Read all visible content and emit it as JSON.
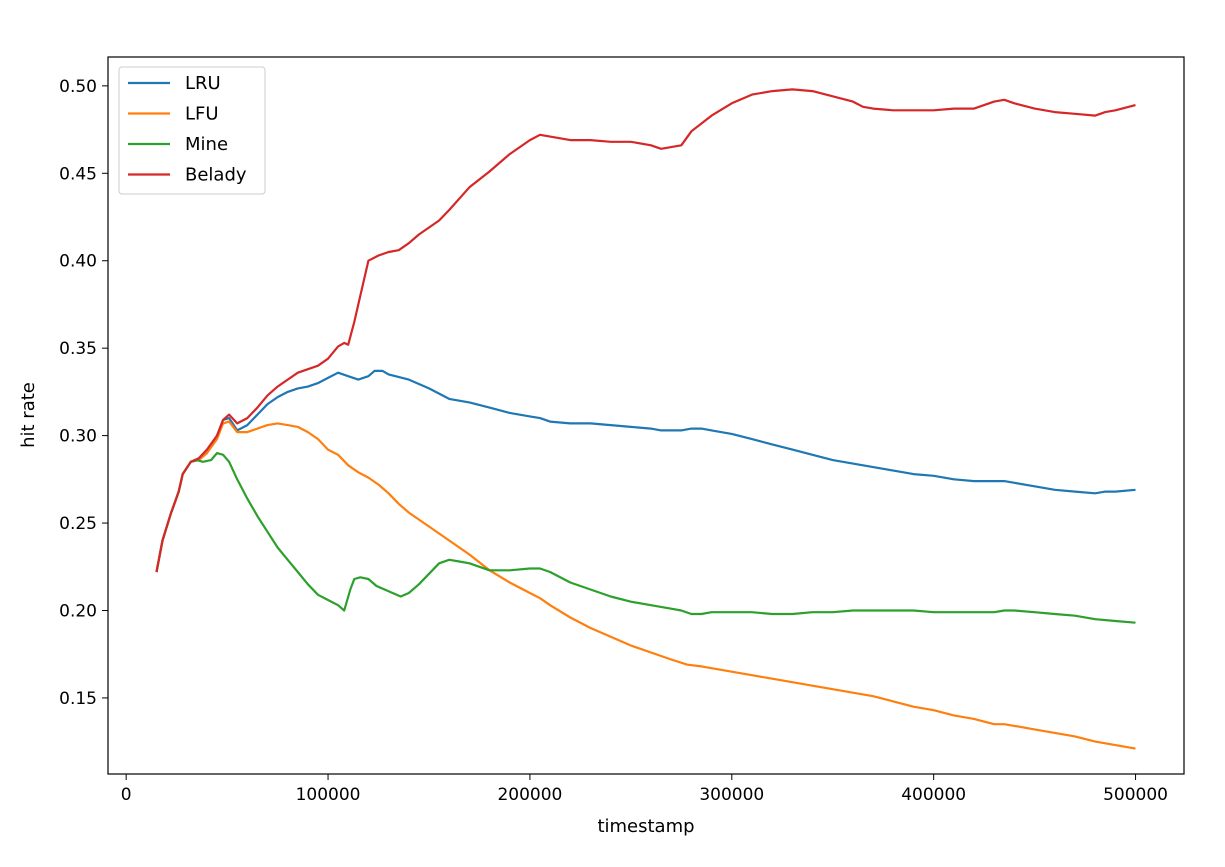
{
  "chart_data": {
    "type": "line",
    "title": "",
    "xlabel": "timestamp",
    "ylabel": "hit rate",
    "xlim": [
      -9000,
      524000
    ],
    "ylim": [
      0.1065,
      0.5165
    ],
    "x_ticks": [
      0,
      100000,
      200000,
      300000,
      400000,
      500000
    ],
    "x_tick_labels": [
      "0",
      "100000",
      "200000",
      "300000",
      "400000",
      "500000"
    ],
    "y_ticks": [
      0.15,
      0.2,
      0.25,
      0.3,
      0.35,
      0.4,
      0.45,
      0.5
    ],
    "y_tick_labels": [
      "0.15",
      "0.20",
      "0.25",
      "0.30",
      "0.35",
      "0.40",
      "0.45",
      "0.50"
    ],
    "grid": false,
    "legend_position": "top-left",
    "series": [
      {
        "name": "LRU",
        "color": "#1f77b4",
        "points": [
          [
            15000,
            0.222
          ],
          [
            18000,
            0.24
          ],
          [
            22000,
            0.255
          ],
          [
            26000,
            0.268
          ],
          [
            28000,
            0.278
          ],
          [
            32000,
            0.285
          ],
          [
            36000,
            0.286
          ],
          [
            40000,
            0.29
          ],
          [
            45000,
            0.3
          ],
          [
            48000,
            0.309
          ],
          [
            51000,
            0.31
          ],
          [
            55000,
            0.303
          ],
          [
            60000,
            0.306
          ],
          [
            65000,
            0.312
          ],
          [
            70000,
            0.318
          ],
          [
            75000,
            0.322
          ],
          [
            80000,
            0.325
          ],
          [
            85000,
            0.327
          ],
          [
            90000,
            0.328
          ],
          [
            95000,
            0.33
          ],
          [
            100000,
            0.333
          ],
          [
            105000,
            0.336
          ],
          [
            110000,
            0.334
          ],
          [
            115000,
            0.332
          ],
          [
            120000,
            0.334
          ],
          [
            123000,
            0.337
          ],
          [
            127000,
            0.337
          ],
          [
            130000,
            0.335
          ],
          [
            140000,
            0.332
          ],
          [
            150000,
            0.327
          ],
          [
            160000,
            0.321
          ],
          [
            170000,
            0.319
          ],
          [
            180000,
            0.316
          ],
          [
            190000,
            0.313
          ],
          [
            200000,
            0.311
          ],
          [
            205000,
            0.31
          ],
          [
            210000,
            0.308
          ],
          [
            220000,
            0.307
          ],
          [
            230000,
            0.307
          ],
          [
            240000,
            0.306
          ],
          [
            250000,
            0.305
          ],
          [
            260000,
            0.304
          ],
          [
            265000,
            0.303
          ],
          [
            270000,
            0.303
          ],
          [
            275000,
            0.303
          ],
          [
            280000,
            0.304
          ],
          [
            285000,
            0.304
          ],
          [
            290000,
            0.303
          ],
          [
            300000,
            0.301
          ],
          [
            310000,
            0.298
          ],
          [
            320000,
            0.295
          ],
          [
            330000,
            0.292
          ],
          [
            340000,
            0.289
          ],
          [
            350000,
            0.286
          ],
          [
            360000,
            0.284
          ],
          [
            370000,
            0.282
          ],
          [
            380000,
            0.28
          ],
          [
            390000,
            0.278
          ],
          [
            400000,
            0.277
          ],
          [
            410000,
            0.275
          ],
          [
            420000,
            0.274
          ],
          [
            430000,
            0.274
          ],
          [
            435000,
            0.274
          ],
          [
            440000,
            0.273
          ],
          [
            450000,
            0.271
          ],
          [
            460000,
            0.269
          ],
          [
            470000,
            0.268
          ],
          [
            480000,
            0.267
          ],
          [
            485000,
            0.268
          ],
          [
            490000,
            0.268
          ],
          [
            500000,
            0.269
          ]
        ]
      },
      {
        "name": "LFU",
        "color": "#ff7f0e",
        "points": [
          [
            15000,
            0.222
          ],
          [
            18000,
            0.24
          ],
          [
            22000,
            0.255
          ],
          [
            26000,
            0.268
          ],
          [
            28000,
            0.278
          ],
          [
            32000,
            0.285
          ],
          [
            36000,
            0.286
          ],
          [
            40000,
            0.29
          ],
          [
            45000,
            0.298
          ],
          [
            48000,
            0.307
          ],
          [
            51000,
            0.308
          ],
          [
            55000,
            0.302
          ],
          [
            60000,
            0.302
          ],
          [
            65000,
            0.304
          ],
          [
            70000,
            0.306
          ],
          [
            75000,
            0.307
          ],
          [
            80000,
            0.306
          ],
          [
            85000,
            0.305
          ],
          [
            90000,
            0.302
          ],
          [
            95000,
            0.298
          ],
          [
            100000,
            0.292
          ],
          [
            105000,
            0.289
          ],
          [
            110000,
            0.283
          ],
          [
            115000,
            0.279
          ],
          [
            120000,
            0.276
          ],
          [
            125000,
            0.272
          ],
          [
            130000,
            0.267
          ],
          [
            135000,
            0.261
          ],
          [
            140000,
            0.256
          ],
          [
            150000,
            0.248
          ],
          [
            160000,
            0.24
          ],
          [
            170000,
            0.232
          ],
          [
            180000,
            0.223
          ],
          [
            190000,
            0.216
          ],
          [
            200000,
            0.21
          ],
          [
            205000,
            0.207
          ],
          [
            210000,
            0.203
          ],
          [
            220000,
            0.196
          ],
          [
            230000,
            0.19
          ],
          [
            240000,
            0.185
          ],
          [
            250000,
            0.18
          ],
          [
            260000,
            0.176
          ],
          [
            270000,
            0.172
          ],
          [
            278000,
            0.169
          ],
          [
            285000,
            0.168
          ],
          [
            290000,
            0.167
          ],
          [
            300000,
            0.165
          ],
          [
            310000,
            0.163
          ],
          [
            320000,
            0.161
          ],
          [
            330000,
            0.159
          ],
          [
            340000,
            0.157
          ],
          [
            350000,
            0.155
          ],
          [
            360000,
            0.153
          ],
          [
            370000,
            0.151
          ],
          [
            380000,
            0.148
          ],
          [
            390000,
            0.145
          ],
          [
            400000,
            0.143
          ],
          [
            410000,
            0.14
          ],
          [
            420000,
            0.138
          ],
          [
            430000,
            0.135
          ],
          [
            435000,
            0.135
          ],
          [
            440000,
            0.134
          ],
          [
            450000,
            0.132
          ],
          [
            460000,
            0.13
          ],
          [
            470000,
            0.128
          ],
          [
            480000,
            0.125
          ],
          [
            490000,
            0.123
          ],
          [
            500000,
            0.121
          ]
        ]
      },
      {
        "name": "Mine",
        "color": "#2ca02c",
        "points": [
          [
            15000,
            0.222
          ],
          [
            18000,
            0.24
          ],
          [
            22000,
            0.255
          ],
          [
            26000,
            0.268
          ],
          [
            28000,
            0.278
          ],
          [
            32000,
            0.285
          ],
          [
            35000,
            0.286
          ],
          [
            38000,
            0.285
          ],
          [
            42000,
            0.286
          ],
          [
            45000,
            0.29
          ],
          [
            48000,
            0.289
          ],
          [
            51000,
            0.285
          ],
          [
            55000,
            0.275
          ],
          [
            60000,
            0.264
          ],
          [
            65000,
            0.254
          ],
          [
            70000,
            0.245
          ],
          [
            75000,
            0.236
          ],
          [
            80000,
            0.229
          ],
          [
            85000,
            0.222
          ],
          [
            90000,
            0.215
          ],
          [
            95000,
            0.209
          ],
          [
            100000,
            0.206
          ],
          [
            105000,
            0.203
          ],
          [
            108000,
            0.2
          ],
          [
            111000,
            0.212
          ],
          [
            113000,
            0.218
          ],
          [
            116000,
            0.219
          ],
          [
            120000,
            0.218
          ],
          [
            124000,
            0.214
          ],
          [
            128000,
            0.212
          ],
          [
            132000,
            0.21
          ],
          [
            136000,
            0.208
          ],
          [
            140000,
            0.21
          ],
          [
            145000,
            0.215
          ],
          [
            150000,
            0.221
          ],
          [
            155000,
            0.227
          ],
          [
            160000,
            0.229
          ],
          [
            165000,
            0.228
          ],
          [
            170000,
            0.227
          ],
          [
            175000,
            0.225
          ],
          [
            180000,
            0.223
          ],
          [
            190000,
            0.223
          ],
          [
            200000,
            0.224
          ],
          [
            205000,
            0.224
          ],
          [
            210000,
            0.222
          ],
          [
            220000,
            0.216
          ],
          [
            230000,
            0.212
          ],
          [
            240000,
            0.208
          ],
          [
            250000,
            0.205
          ],
          [
            260000,
            0.203
          ],
          [
            270000,
            0.201
          ],
          [
            275000,
            0.2
          ],
          [
            280000,
            0.198
          ],
          [
            285000,
            0.198
          ],
          [
            290000,
            0.199
          ],
          [
            300000,
            0.199
          ],
          [
            310000,
            0.199
          ],
          [
            320000,
            0.198
          ],
          [
            325000,
            0.198
          ],
          [
            330000,
            0.198
          ],
          [
            340000,
            0.199
          ],
          [
            350000,
            0.199
          ],
          [
            360000,
            0.2
          ],
          [
            370000,
            0.2
          ],
          [
            380000,
            0.2
          ],
          [
            390000,
            0.2
          ],
          [
            400000,
            0.199
          ],
          [
            410000,
            0.199
          ],
          [
            420000,
            0.199
          ],
          [
            430000,
            0.199
          ],
          [
            435000,
            0.2
          ],
          [
            440000,
            0.2
          ],
          [
            450000,
            0.199
          ],
          [
            460000,
            0.198
          ],
          [
            470000,
            0.197
          ],
          [
            480000,
            0.195
          ],
          [
            490000,
            0.194
          ],
          [
            500000,
            0.193
          ]
        ]
      },
      {
        "name": "Belady",
        "color": "#d62728",
        "points": [
          [
            15000,
            0.222
          ],
          [
            18000,
            0.24
          ],
          [
            22000,
            0.255
          ],
          [
            26000,
            0.268
          ],
          [
            28000,
            0.278
          ],
          [
            32000,
            0.285
          ],
          [
            36000,
            0.287
          ],
          [
            40000,
            0.292
          ],
          [
            45000,
            0.3
          ],
          [
            48000,
            0.309
          ],
          [
            51000,
            0.312
          ],
          [
            55000,
            0.307
          ],
          [
            60000,
            0.31
          ],
          [
            65000,
            0.316
          ],
          [
            70000,
            0.323
          ],
          [
            75000,
            0.328
          ],
          [
            80000,
            0.332
          ],
          [
            85000,
            0.336
          ],
          [
            90000,
            0.338
          ],
          [
            95000,
            0.34
          ],
          [
            100000,
            0.344
          ],
          [
            105000,
            0.351
          ],
          [
            108000,
            0.353
          ],
          [
            110000,
            0.352
          ],
          [
            113000,
            0.365
          ],
          [
            116000,
            0.38
          ],
          [
            120000,
            0.4
          ],
          [
            125000,
            0.403
          ],
          [
            130000,
            0.405
          ],
          [
            135000,
            0.406
          ],
          [
            140000,
            0.41
          ],
          [
            145000,
            0.415
          ],
          [
            150000,
            0.419
          ],
          [
            155000,
            0.423
          ],
          [
            160000,
            0.429
          ],
          [
            170000,
            0.442
          ],
          [
            180000,
            0.451
          ],
          [
            190000,
            0.461
          ],
          [
            200000,
            0.469
          ],
          [
            205000,
            0.472
          ],
          [
            210000,
            0.471
          ],
          [
            220000,
            0.469
          ],
          [
            230000,
            0.469
          ],
          [
            240000,
            0.468
          ],
          [
            250000,
            0.468
          ],
          [
            260000,
            0.466
          ],
          [
            265000,
            0.464
          ],
          [
            270000,
            0.465
          ],
          [
            275000,
            0.466
          ],
          [
            280000,
            0.474
          ],
          [
            290000,
            0.483
          ],
          [
            300000,
            0.49
          ],
          [
            310000,
            0.495
          ],
          [
            320000,
            0.497
          ],
          [
            330000,
            0.498
          ],
          [
            340000,
            0.497
          ],
          [
            350000,
            0.494
          ],
          [
            360000,
            0.491
          ],
          [
            365000,
            0.488
          ],
          [
            370000,
            0.487
          ],
          [
            380000,
            0.486
          ],
          [
            390000,
            0.486
          ],
          [
            400000,
            0.486
          ],
          [
            410000,
            0.487
          ],
          [
            420000,
            0.487
          ],
          [
            430000,
            0.491
          ],
          [
            435000,
            0.492
          ],
          [
            440000,
            0.49
          ],
          [
            450000,
            0.487
          ],
          [
            460000,
            0.485
          ],
          [
            470000,
            0.484
          ],
          [
            480000,
            0.483
          ],
          [
            485000,
            0.485
          ],
          [
            490000,
            0.486
          ],
          [
            500000,
            0.489
          ]
        ]
      }
    ]
  }
}
